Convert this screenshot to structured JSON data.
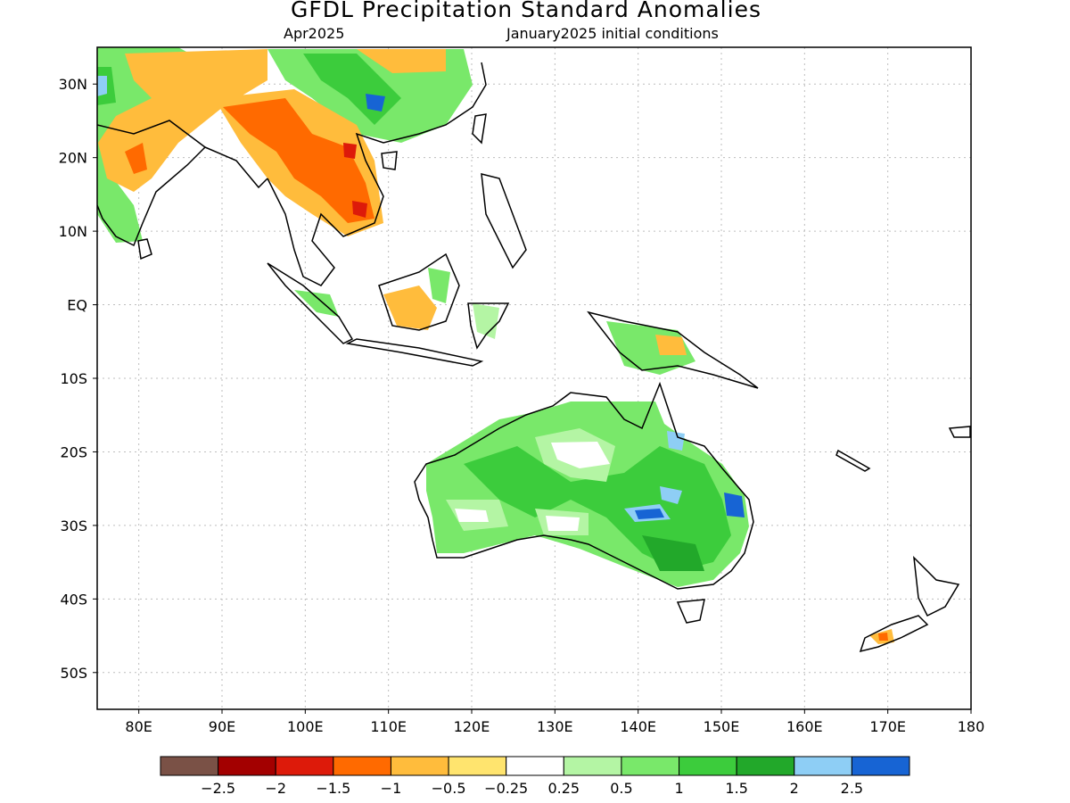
{
  "map": {
    "title": "GFDL Precipitation Standard Anomalies",
    "valid_month": "Apr2025",
    "init_conditions": "January2025 initial conditions",
    "lat_labels": [
      "30N",
      "20N",
      "10N",
      "EQ",
      "10S",
      "20S",
      "30S",
      "40S",
      "50S"
    ],
    "lon_labels": [
      "80E",
      "90E",
      "100E",
      "110E",
      "120E",
      "130E",
      "140E",
      "150E",
      "160E",
      "170E",
      "180"
    ],
    "lat_values": [
      30,
      20,
      10,
      0,
      -10,
      -20,
      -30,
      -40,
      -50
    ],
    "lon_values": [
      80,
      90,
      100,
      110,
      120,
      130,
      140,
      150,
      160,
      170,
      180
    ],
    "extent": {
      "lon_min": 75,
      "lon_max": 180,
      "lat_min": -55,
      "lat_max": 35
    },
    "regions": [
      "India: mixed dry (orange) and wet (green) anomalies",
      "Indochina: strong dry anomalies (-1 to -1.5)",
      "South China: wet anomalies",
      "Borneo: dry anomalies",
      "Australia: widespread wet anomalies (0.5 to 2.5)",
      "New Guinea: mixed wet and dry",
      "New Zealand South Island: dry anomaly"
    ]
  },
  "colorbar": {
    "labels": [
      "-2.5",
      "-2",
      "-1.5",
      "-1",
      "-0.5",
      "-0.25",
      "0.25",
      "0.5",
      "1",
      "1.5",
      "2",
      "2.5"
    ],
    "colors": [
      "#7a5146",
      "#a30000",
      "#dd1a0a",
      "#ff6a00",
      "#ffbc3c",
      "#ffe46e",
      "#ffffff",
      "#b4f5a4",
      "#79e86a",
      "#3ccc3c",
      "#22a82a",
      "#8ecef5",
      "#1764d4"
    ]
  }
}
